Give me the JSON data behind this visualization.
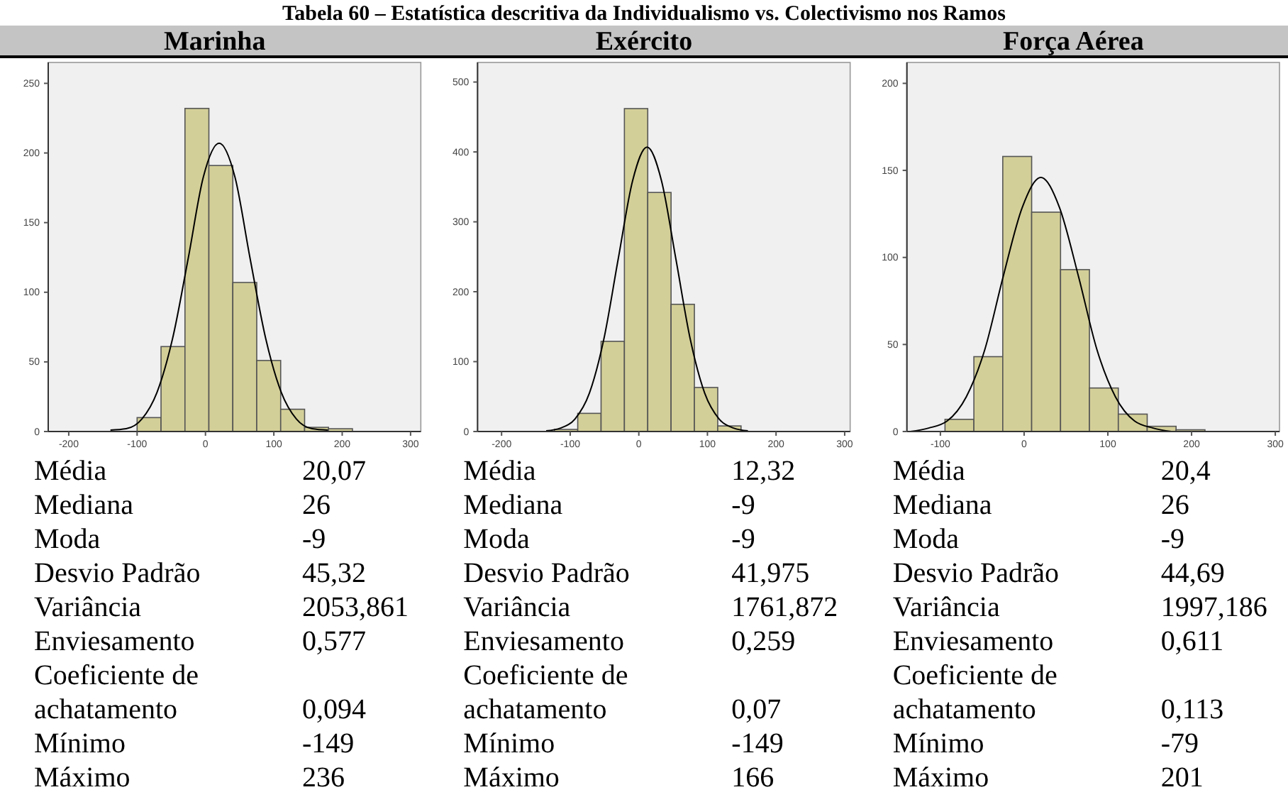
{
  "chart_data": [
    {
      "type": "histogram",
      "subtitle": "Tabela 60 – Estatística descritiva da Individualismo vs. Colectivismo nos Ramos",
      "title": "Marinha",
      "color": "#d3cf98",
      "bins": [
        -100,
        -65,
        -30,
        5,
        40,
        75,
        110,
        145,
        180,
        215
      ],
      "values": [
        10,
        61,
        232,
        191,
        107,
        51,
        16,
        3,
        2
      ],
      "series": [
        {
          "type": "line",
          "color": "#000000",
          "x": [
            -139,
            -116,
            -93,
            -71,
            -48,
            -25,
            -3,
            20,
            43,
            65,
            88,
            111,
            133,
            156,
            179
          ],
          "values": [
            1,
            2,
            9,
            28,
            67,
            125,
            183,
            207,
            183,
            125,
            67,
            28,
            9,
            2,
            1
          ]
        }
      ],
      "xlim": [
        -230,
        315
      ],
      "ylim": [
        0,
        265
      ],
      "xticks": [
        -200,
        -100,
        0,
        100,
        200,
        300
      ],
      "yticks": [
        0,
        50,
        100,
        150,
        200,
        250
      ],
      "annotations": [
        "Média",
        "20,07",
        "Mediana",
        "26",
        "Moda",
        "-9",
        "Desvio Padrão",
        "45,32",
        "Variância",
        "2053,861",
        "Enviesamento",
        "0,577",
        "Coeficiente de achatamento",
        "0,094",
        "Mínimo",
        "-149",
        "Máximo",
        "236"
      ]
    },
    {
      "type": "histogram",
      "title": "Exército",
      "color": "#d3cf98",
      "bins": [
        -123,
        -89,
        -55,
        -21,
        13,
        47,
        81,
        115,
        149
      ],
      "values": [
        3,
        26,
        129,
        462,
        342,
        182,
        63,
        8
      ],
      "series": [
        {
          "type": "line",
          "color": "#000000",
          "x": [
            -135,
            -114,
            -93,
            -72,
            -51,
            -30,
            -9,
            12,
            33,
            54,
            75,
            96,
            117,
            138,
            159
          ],
          "values": [
            1,
            5,
            18,
            55,
            132,
            247,
            359,
            407,
            359,
            247,
            132,
            55,
            18,
            5,
            1
          ]
        }
      ],
      "xlim": [
        -235,
        308
      ],
      "ylim": [
        0,
        528
      ],
      "xticks": [
        -200,
        -100,
        0,
        100,
        200,
        300
      ],
      "yticks": [
        0,
        100,
        200,
        300,
        400,
        500
      ],
      "annotations": [
        "Média",
        "12,32",
        "Mediana",
        "-9",
        "Moda",
        "-9",
        "Desvio Padrão",
        "41,975",
        "Variância",
        "1761,872",
        "Enviesamento",
        "0,259",
        "Coeficiente de achatamento",
        "0,07",
        "Mínimo",
        "-149",
        "Máximo",
        "166"
      ]
    },
    {
      "type": "histogram",
      "title": "Força Aérea",
      "color": "#d3cf98",
      "bins": [
        -94.5,
        -60,
        -25.5,
        9,
        43.5,
        78,
        112.5,
        147,
        181.5,
        216
      ],
      "values": [
        7,
        43,
        158,
        126,
        93,
        25,
        10,
        3,
        1
      ],
      "series": [
        {
          "type": "line",
          "color": "#000000",
          "x": [
            -136,
            -114,
            -92,
            -69,
            -47,
            -25,
            -2,
            20,
            42,
            65,
            87,
            109,
            132,
            154,
            176
          ],
          "values": [
            0,
            2,
            6,
            20,
            47,
            89,
            129,
            146,
            129,
            89,
            47,
            20,
            6,
            2,
            0
          ]
        }
      ],
      "xlim": [
        -140,
        305
      ],
      "ylim": [
        0,
        212
      ],
      "xticks": [
        -100,
        0,
        100,
        200,
        300
      ],
      "yticks": [
        0,
        50,
        100,
        150,
        200
      ],
      "annotations": [
        "Média",
        "20,4",
        "Mediana",
        "26",
        "Moda",
        "-9",
        "Desvio Padrão",
        "44,69",
        "Variância",
        "1997,186",
        "Enviesamento",
        "0,611",
        "Coeficiente de achatamento",
        "0,113",
        "Mínimo",
        "-79",
        "Máximo",
        "201"
      ]
    }
  ]
}
